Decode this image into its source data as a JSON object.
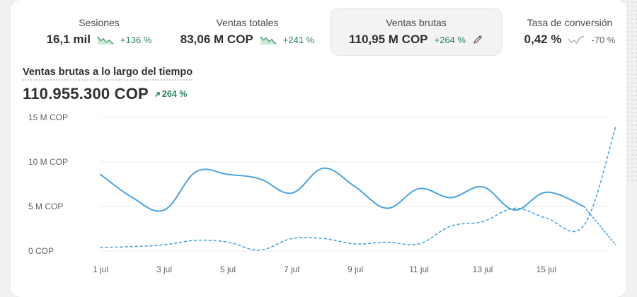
{
  "metrics": [
    {
      "label": "Sesiones",
      "value": "16,1 mil",
      "delta": "+136 %",
      "trend": "up",
      "spark_icon": "trend-up-sparkline-icon"
    },
    {
      "label": "Ventas totales",
      "value": "83,06 M COP",
      "delta": "+241 %",
      "trend": "up",
      "spark_icon": "trend-up-sparkline-icon"
    },
    {
      "label": "Ventas brutas",
      "value": "110,95 M COP",
      "delta": "+264 %",
      "trend": "up",
      "active": true,
      "action_icon": "pencil-edit-icon"
    },
    {
      "label": "Tasa de conversión",
      "value": "0,42 %",
      "delta": "-70 %",
      "trend": "down",
      "spark_icon": "trend-down-sparkline-icon"
    }
  ],
  "section": {
    "title": "Ventas brutas a lo largo del tiempo",
    "total": "110.955.300 COP",
    "total_delta": "264 %",
    "delta_icon": "arrow-up-right-icon"
  },
  "colors": {
    "accent_line": "#4aa3df",
    "positive": "#29845a",
    "grid": "#ebebeb"
  },
  "chart_data": {
    "type": "line",
    "title": "Ventas brutas a lo largo del tiempo",
    "xlabel": "",
    "ylabel": "",
    "y_unit": "COP",
    "ylim": [
      0,
      15000000
    ],
    "y_ticks": [
      "0 COP",
      "5 M COP",
      "10 M COP",
      "15 M COP"
    ],
    "y_tick_values": [
      0,
      5000000,
      10000000,
      15000000
    ],
    "x_ticks": [
      "1 jul",
      "3 jul",
      "5 jul",
      "7 jul",
      "9 jul",
      "11 jul",
      "13 jul",
      "15 jul"
    ],
    "x_tick_days": [
      1,
      3,
      5,
      7,
      9,
      11,
      13,
      15
    ],
    "grid": true,
    "series": [
      {
        "style": "solid",
        "x_days": [
          1,
          2,
          3,
          4,
          5,
          6,
          7,
          8,
          9,
          10,
          11,
          12,
          13,
          14,
          15,
          16
        ],
        "values": [
          8600000,
          6000000,
          4600000,
          8900000,
          8600000,
          8100000,
          6500000,
          9300000,
          7200000,
          4800000,
          7000000,
          6000000,
          7200000,
          4600000,
          6600000,
          5000000
        ]
      },
      {
        "style": "dashed",
        "x_days": [
          1,
          2,
          3,
          4,
          5,
          6,
          7,
          8,
          9,
          10,
          11,
          12,
          13,
          14,
          15,
          16,
          17
        ],
        "values": [
          400000,
          500000,
          700000,
          1200000,
          1000000,
          100000,
          1400000,
          1400000,
          800000,
          1000000,
          800000,
          2800000,
          3300000,
          4800000,
          3700000,
          2900000,
          14000000
        ]
      },
      {
        "style": "dotted-tail",
        "x_days": [
          16,
          17
        ],
        "values": [
          5000000,
          700000
        ]
      }
    ]
  }
}
